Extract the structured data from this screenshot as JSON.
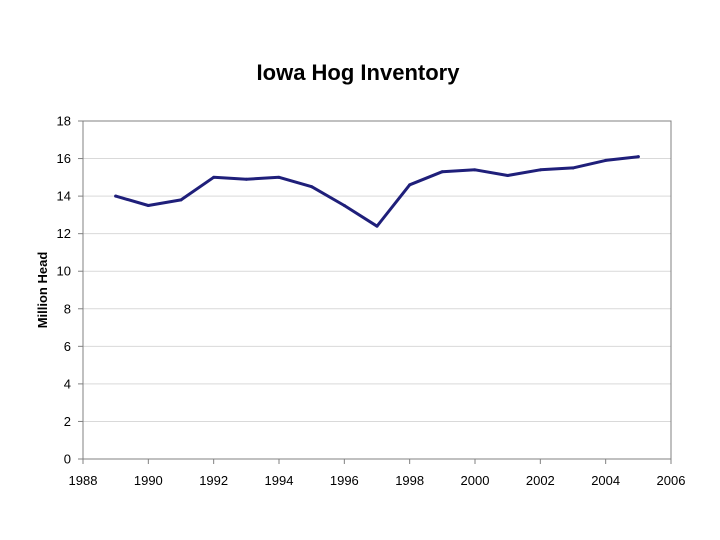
{
  "chart_data": {
    "type": "line",
    "title": "Iowa Hog Inventory",
    "xlabel": "",
    "ylabel": "Million Head",
    "xlim": [
      1988,
      2006
    ],
    "ylim": [
      0,
      18
    ],
    "x_ticks": [
      1988,
      1990,
      1992,
      1994,
      1996,
      1998,
      2000,
      2002,
      2004,
      2006
    ],
    "y_ticks": [
      0,
      2,
      4,
      6,
      8,
      10,
      12,
      14,
      16,
      18
    ],
    "grid": true,
    "legend": "none",
    "series": [
      {
        "color": "#1f1f7a",
        "x": [
          1989,
          1990,
          1991,
          1992,
          1993,
          1994,
          1995,
          1996,
          1997,
          1998,
          1999,
          2000,
          2001,
          2002,
          2003,
          2004,
          2005
        ],
        "values": [
          14.0,
          13.5,
          13.8,
          15.0,
          14.9,
          15.0,
          14.5,
          13.5,
          12.4,
          14.6,
          15.3,
          15.4,
          15.1,
          15.4,
          15.5,
          15.9,
          16.1
        ]
      }
    ]
  }
}
